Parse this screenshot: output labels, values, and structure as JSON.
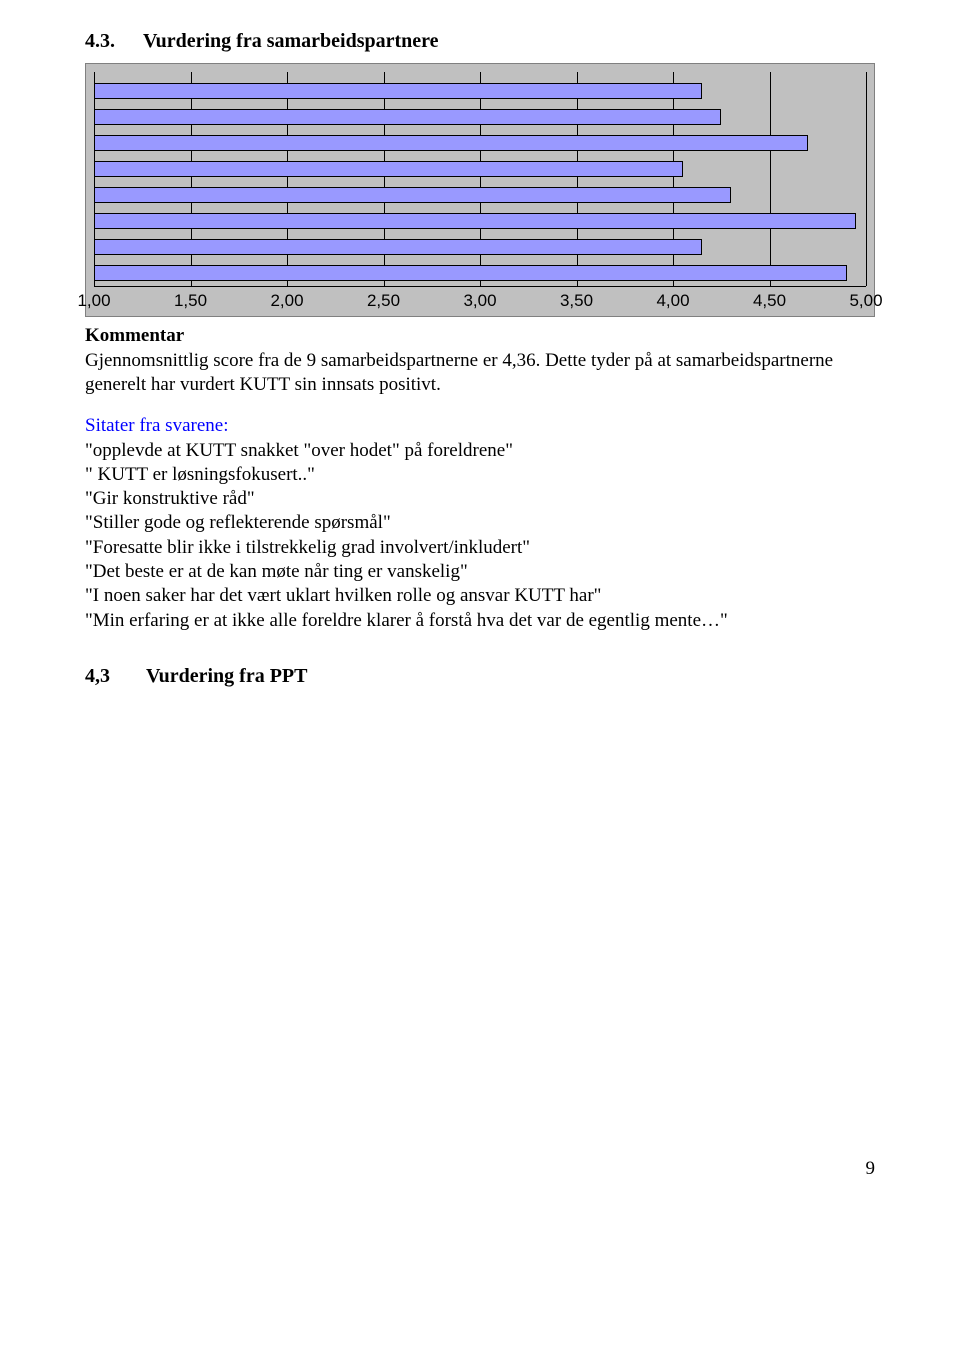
{
  "section1": {
    "number": "4.3.",
    "title": "Vurdering fra samarbeidspartnere"
  },
  "chart": {
    "type": "bar-horizontal",
    "xmin": 1.0,
    "xmax": 5.0,
    "xticks": [
      1.0,
      1.5,
      2.0,
      2.5,
      3.0,
      3.5,
      4.0,
      4.5,
      5.0
    ],
    "xtick_labels": [
      "1,00",
      "1,50",
      "2,00",
      "2,50",
      "3,00",
      "3,50",
      "4,00",
      "4,50",
      "5,00"
    ],
    "values": [
      4.15,
      4.25,
      4.7,
      4.05,
      4.3,
      4.95,
      4.15,
      4.9
    ],
    "bar_color": "#9999ff",
    "bar_border": "#000000",
    "background": "#c0c0c0",
    "grid_color": "#000000",
    "axis_font_family": "Arial",
    "axis_font_size": 17
  },
  "kommentar": {
    "heading": "Kommentar",
    "text": "Gjennomsnittlig score fra de 9 samarbeidspartnerne er 4,36. Dette tyder på at samarbeidspartnerne generelt har vurdert KUTT sin innsats positivt."
  },
  "sitater": {
    "intro": "Sitater fra svarene:",
    "lines": [
      "\"opplevde at KUTT snakket \"over hodet\" på foreldrene\"",
      "\" KUTT er løsningsfokusert..\"",
      "\"Gir konstruktive råd\"",
      "\"Stiller gode og reflekterende spørsmål\"",
      "\"Foresatte blir ikke i tilstrekkelig grad involvert/inkludert\"",
      "\"Det beste er at de kan møte når ting er vanskelig\"",
      "\"I noen saker har det vært uklart hvilken rolle og ansvar KUTT har\"",
      "\"Min erfaring er at ikke alle foreldre klarer å forstå hva det var de egentlig mente…\""
    ]
  },
  "section2": {
    "number": "4,3",
    "title": "Vurdering fra PPT"
  },
  "page_number": "9"
}
